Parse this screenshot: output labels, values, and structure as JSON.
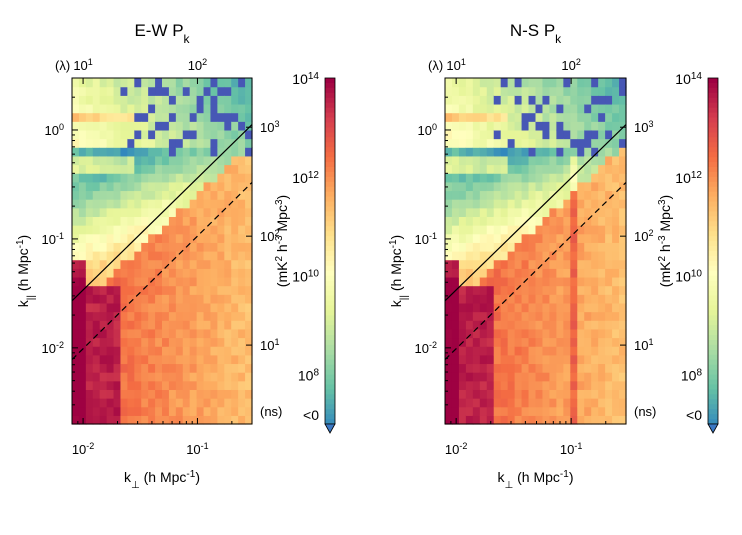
{
  "chart_data": [
    {
      "type": "heatmap",
      "title": "E-W P",
      "title_sub": "k",
      "xlabel": "k",
      "xlabel_sub": "⊥",
      "xlabel_units": " (h Mpc",
      "xlabel_exp": "-1",
      "xlabel_close": ")",
      "ylabel": "k",
      "ylabel_sub": "||",
      "ylabel_units": " (h Mpc",
      "ylabel_exp": "-1",
      "ylabel_close": ")",
      "x_scale": "log",
      "y_scale": "log",
      "xlim": [
        0.008,
        0.3
      ],
      "ylim": [
        0.002,
        3.0
      ],
      "x_ticks": [
        {
          "value": 0.01,
          "base": "10",
          "exp": "-2"
        },
        {
          "value": 0.1,
          "base": "10",
          "exp": "-1"
        }
      ],
      "y_ticks": [
        {
          "value": 0.01,
          "base": "10",
          "exp": "-2"
        },
        {
          "value": 0.1,
          "base": "10",
          "exp": "-1"
        },
        {
          "value": 1,
          "base": "10",
          "exp": "0"
        }
      ],
      "top_axis_label": "(λ)",
      "top_ticks": [
        {
          "value": 10,
          "base": "10",
          "exp": "1"
        },
        {
          "value": 100,
          "base": "10",
          "exp": "2"
        }
      ],
      "right_axis_label": "(ns)",
      "right_ticks": [
        {
          "value": 10,
          "base": "10",
          "exp": "1"
        },
        {
          "value": 100,
          "base": "10",
          "exp": "2"
        },
        {
          "value": 1000,
          "base": "10",
          "exp": "3"
        }
      ],
      "horizon_line": {
        "style": "solid",
        "k_perp": [
          0.008,
          0.3
        ],
        "k_par": [
          0.027,
          1.12
        ]
      },
      "buffer_line": {
        "style": "dashed",
        "k_perp": [
          0.008,
          0.3
        ],
        "k_par": [
          0.0078,
          0.33
        ]
      },
      "has_vertical_stripe": false
    },
    {
      "type": "heatmap",
      "title": "N-S P",
      "title_sub": "k",
      "xlabel": "k",
      "xlabel_sub": "⊥",
      "xlabel_units": " (h Mpc",
      "xlabel_exp": "-1",
      "xlabel_close": ")",
      "ylabel": "k",
      "ylabel_sub": "||",
      "ylabel_units": " (h Mpc",
      "ylabel_exp": "-1",
      "ylabel_close": ")",
      "x_scale": "log",
      "y_scale": "log",
      "xlim": [
        0.008,
        0.3
      ],
      "ylim": [
        0.002,
        3.0
      ],
      "x_ticks": [
        {
          "value": 0.01,
          "base": "10",
          "exp": "-2"
        },
        {
          "value": 0.1,
          "base": "10",
          "exp": "-1"
        }
      ],
      "y_ticks": [
        {
          "value": 0.01,
          "base": "10",
          "exp": "-2"
        },
        {
          "value": 0.1,
          "base": "10",
          "exp": "-1"
        },
        {
          "value": 1,
          "base": "10",
          "exp": "0"
        }
      ],
      "top_axis_label": "(λ)",
      "top_ticks": [
        {
          "value": 10,
          "base": "10",
          "exp": "1"
        },
        {
          "value": 100,
          "base": "10",
          "exp": "2"
        }
      ],
      "right_axis_label": "(ns)",
      "right_ticks": [
        {
          "value": 10,
          "base": "10",
          "exp": "1"
        },
        {
          "value": 100,
          "base": "10",
          "exp": "2"
        },
        {
          "value": 1000,
          "base": "10",
          "exp": "3"
        }
      ],
      "horizon_line": {
        "style": "solid",
        "k_perp": [
          0.008,
          0.3
        ],
        "k_par": [
          0.027,
          1.12
        ]
      },
      "buffer_line": {
        "style": "dashed",
        "k_perp": [
          0.008,
          0.3
        ],
        "k_par": [
          0.0078,
          0.33
        ]
      },
      "has_vertical_stripe": true
    }
  ],
  "colorbar": {
    "label": "(mK",
    "label_parts": [
      "(mK",
      "2",
      " h",
      "-3",
      " Mpc",
      "3",
      ")"
    ],
    "scale": "log",
    "range_exp": [
      7,
      14
    ],
    "ticks": [
      {
        "value": 14,
        "base": "10",
        "exp": "14"
      },
      {
        "value": 12,
        "base": "10",
        "exp": "12"
      },
      {
        "value": 10,
        "base": "10",
        "exp": "10"
      },
      {
        "value": 8,
        "base": "10",
        "exp": "8"
      }
    ],
    "under_label": "<0",
    "colormap": "Spectral_r",
    "colors": [
      "#9e0142",
      "#d53e4f",
      "#f46d43",
      "#fdae61",
      "#fee08b",
      "#ffffbf",
      "#e6f598",
      "#abdda4",
      "#66c2a5",
      "#3288bd"
    ],
    "under_color": "#3b78c4",
    "negative_color": "#4757b5"
  }
}
